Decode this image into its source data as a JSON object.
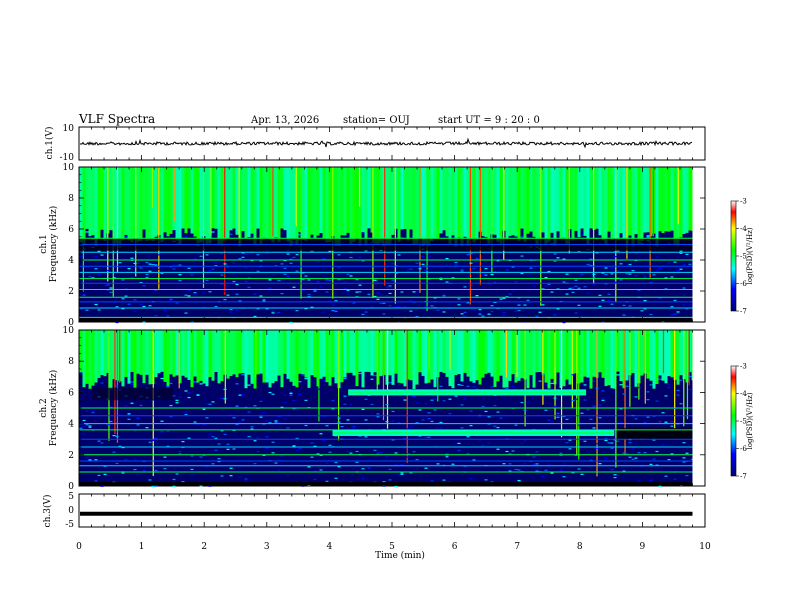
{
  "header": {
    "title": "VLF Spectra",
    "date": "Apr. 13, 2026",
    "station": "station= OUJ",
    "start_ut": "start  UT  =   9  : 20 : 0"
  },
  "chart_data": [
    {
      "type": "line",
      "panel": "ch1-waveform",
      "ylabel": "ch.1(V)",
      "ylim": [
        -10,
        10
      ],
      "yticks": [
        "10",
        "-10"
      ],
      "trace_level": 0,
      "description_values": {
        "baseline": 0,
        "noise_amplitude": 1.5
      }
    },
    {
      "type": "heatmap",
      "panel": "ch1-spectrogram",
      "ylabel": "ch.1\nFrequency (kHz)",
      "ylim": [
        0,
        10
      ],
      "yticks": [
        "0",
        "2",
        "4",
        "6",
        "8",
        "10"
      ],
      "colorbar": {
        "label": "log(PSD)(V²/Hz)",
        "range": [
          -7,
          -3
        ],
        "ticks": [
          "-3",
          "-4",
          "-5",
          "-6",
          "-7"
        ]
      },
      "noise_floor_khz": 5.5,
      "hum_lines_khz": [
        0.3,
        0.9,
        1.3,
        1.6,
        2.1,
        2.5,
        2.8,
        3.2,
        3.6,
        4.0,
        4.5,
        5.0,
        5.4
      ]
    },
    {
      "type": "heatmap",
      "panel": "ch2-spectrogram",
      "ylabel": "ch.2\nFrequency (kHz)",
      "ylim": [
        0,
        10
      ],
      "yticks": [
        "0",
        "2",
        "4",
        "6",
        "8",
        "10"
      ],
      "colorbar": {
        "label": "log(PSD)(V²/Hz)",
        "range": [
          -7,
          -3
        ],
        "ticks": [
          "-3",
          "-4",
          "-5",
          "-6",
          "-7"
        ]
      },
      "bands": [
        {
          "freq_khz": 6.0,
          "t_start_min": 4.3,
          "t_end_min": 8.1
        },
        {
          "freq_khz": 3.4,
          "t_start_min": 4.05,
          "t_end_min": 8.55
        }
      ],
      "hum_lines_khz": [
        0.9,
        1.3,
        1.6,
        2.0,
        2.5,
        3.0,
        3.6,
        4.0,
        4.5,
        5.0
      ]
    },
    {
      "type": "line",
      "panel": "ch3-waveform",
      "ylabel": "ch.3(V)",
      "ylim": [
        -5,
        5
      ],
      "yticks": [
        "5",
        "0",
        "-5"
      ],
      "trace_level": -1
    }
  ],
  "xaxis": {
    "label": "Time (min)",
    "range": [
      0,
      10
    ],
    "ticks": [
      "0",
      "1",
      "2",
      "3",
      "4",
      "5",
      "6",
      "7",
      "8",
      "9",
      "10"
    ],
    "data_end_min": 9.8
  },
  "colors": {
    "background": "#000000",
    "spectrum_low": "#00007a",
    "spectrum_high": "#ff0000"
  }
}
